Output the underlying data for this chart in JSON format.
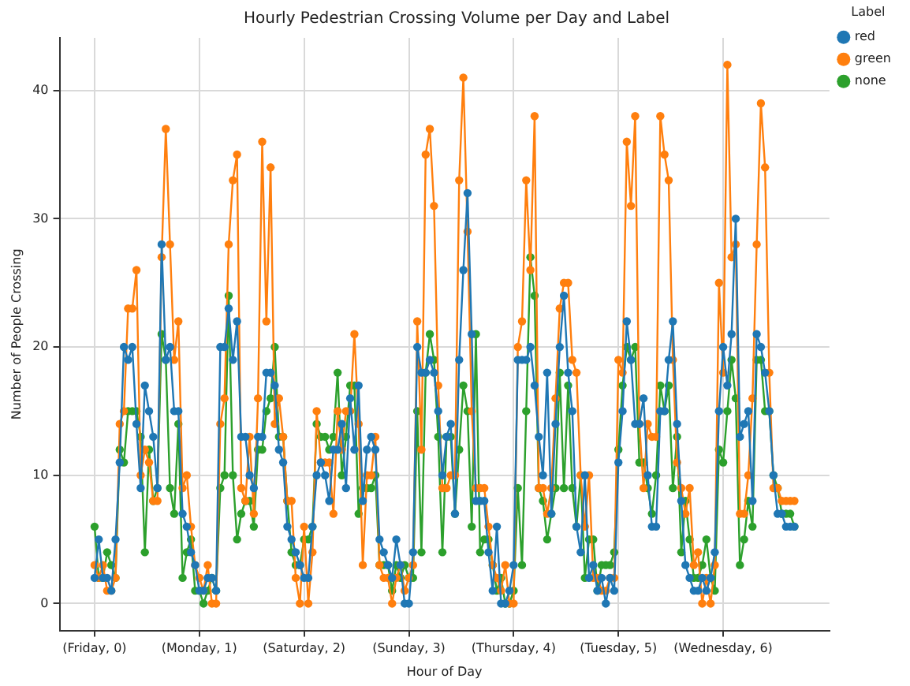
{
  "chart_data": {
    "type": "line",
    "title": "Hourly Pedestrian Crossing Volume per Day and Label",
    "xlabel": "Hour of Day",
    "ylabel": "Number of People Crossing",
    "legend_title": "Label",
    "legend": "top right",
    "grid": true,
    "marker": "circle",
    "line_style": "solid",
    "ylim": [
      -2.1,
      44.1
    ],
    "yticks": [
      0,
      10,
      20,
      30,
      40
    ],
    "categories": [
      "(Friday, 0)",
      null,
      null,
      null,
      null,
      null,
      null,
      null,
      null,
      null,
      null,
      null,
      null,
      null,
      null,
      null,
      null,
      null,
      null,
      null,
      null,
      null,
      null,
      null,
      null,
      "(Monday, 1)",
      null,
      null,
      null,
      null,
      null,
      null,
      null,
      null,
      null,
      null,
      null,
      null,
      null,
      null,
      null,
      null,
      null,
      null,
      null,
      null,
      null,
      null,
      null,
      null,
      "(Saturday, 2)",
      null,
      null,
      null,
      null,
      null,
      null,
      null,
      null,
      null,
      null,
      null,
      null,
      null,
      null,
      null,
      null,
      null,
      null,
      null,
      null,
      null,
      null,
      null,
      null,
      "(Sunday, 3)",
      null,
      null,
      null,
      null,
      null,
      null,
      null,
      null,
      null,
      null,
      null,
      null,
      null,
      null,
      null,
      null,
      null,
      null,
      null,
      null,
      null,
      null,
      null,
      null,
      "(Thursday, 4)",
      null,
      null,
      null,
      null,
      null,
      null,
      null,
      null,
      null,
      null,
      null,
      null,
      null,
      null,
      null,
      null,
      null,
      null,
      null,
      null,
      null,
      null,
      null,
      null,
      "(Tuesday, 5)",
      null,
      null,
      null,
      null,
      null,
      null,
      null,
      null,
      null,
      null,
      null,
      null,
      null,
      null,
      null,
      null,
      null,
      null,
      null,
      null,
      null,
      null,
      null,
      null,
      "(Wednesday, 6)",
      null,
      null,
      null,
      null,
      null,
      null,
      null,
      null,
      null,
      null,
      null,
      null,
      null,
      null,
      null,
      null,
      null
    ],
    "series": [
      {
        "name": "red",
        "color": "#1f77b4",
        "values": [
          2,
          5,
          2,
          2,
          1,
          5,
          11,
          20,
          19,
          20,
          14,
          9,
          17,
          15,
          13,
          9,
          28,
          19,
          20,
          15,
          15,
          7,
          6,
          4,
          3,
          1,
          1,
          2,
          2,
          1,
          20,
          20,
          23,
          19,
          22,
          13,
          13,
          10,
          9,
          13,
          13,
          18,
          18,
          17,
          12,
          11,
          6,
          5,
          4,
          3,
          2,
          2,
          6,
          10,
          11,
          10,
          8,
          12,
          12,
          14,
          9,
          16,
          12,
          17,
          8,
          12,
          13,
          12,
          5,
          4,
          3,
          2,
          5,
          3,
          0,
          0,
          4,
          20,
          18,
          18,
          19,
          18,
          15,
          10,
          13,
          14,
          7,
          19,
          26,
          32,
          21,
          8,
          8,
          8,
          4,
          1,
          6,
          0,
          0,
          1,
          3,
          19,
          19,
          19,
          20,
          17,
          13,
          10,
          18,
          7,
          14,
          20,
          24,
          18,
          15,
          6,
          4,
          10,
          2,
          3,
          1,
          2,
          0,
          2,
          1,
          11,
          15,
          22,
          19,
          14,
          14,
          16,
          10,
          6,
          6,
          15,
          15,
          19,
          22,
          14,
          8,
          3,
          2,
          1,
          1,
          2,
          1,
          2,
          4,
          15,
          20,
          17,
          21,
          30,
          13,
          14,
          15,
          8,
          21,
          20,
          18,
          15,
          10,
          7,
          7,
          6,
          6,
          6
        ]
      },
      {
        "name": "green",
        "color": "#ff7f0e",
        "values": [
          3,
          2,
          3,
          1,
          1,
          2,
          14,
          15,
          23,
          23,
          26,
          10,
          12,
          11,
          8,
          8,
          27,
          37,
          28,
          19,
          22,
          9,
          10,
          6,
          3,
          2,
          1,
          3,
          0,
          0,
          14,
          16,
          28,
          33,
          35,
          9,
          8,
          13,
          7,
          16,
          36,
          22,
          34,
          14,
          16,
          13,
          8,
          8,
          2,
          0,
          6,
          0,
          4,
          15,
          11,
          11,
          11,
          7,
          15,
          12,
          15,
          15,
          21,
          14,
          3,
          10,
          10,
          13,
          3,
          2,
          2,
          0,
          2,
          3,
          1,
          2,
          3,
          22,
          12,
          35,
          37,
          31,
          17,
          9,
          9,
          10,
          10,
          33,
          41,
          29,
          15,
          9,
          9,
          9,
          6,
          3,
          2,
          1,
          3,
          0,
          0,
          20,
          22,
          33,
          26,
          38,
          9,
          9,
          7,
          9,
          16,
          23,
          25,
          25,
          19,
          18,
          10,
          6,
          10,
          2,
          2,
          1,
          1,
          2,
          2,
          19,
          18,
          36,
          31,
          38,
          14,
          9,
          14,
          13,
          13,
          38,
          35,
          33,
          19,
          11,
          9,
          7,
          9,
          3,
          4,
          0,
          2,
          0,
          3,
          25,
          18,
          42,
          27,
          28,
          7,
          7,
          10,
          16,
          28,
          39,
          34,
          18,
          9,
          9,
          8,
          8,
          8,
          8
        ]
      },
      {
        "name": "none",
        "color": "#2ca02c",
        "values": [
          6,
          2,
          2,
          4,
          3,
          2,
          12,
          11,
          15,
          15,
          15,
          13,
          4,
          12,
          8,
          9,
          21,
          19,
          9,
          7,
          14,
          2,
          4,
          5,
          1,
          1,
          0,
          1,
          2,
          1,
          9,
          10,
          24,
          10,
          5,
          7,
          8,
          8,
          6,
          12,
          12,
          15,
          16,
          20,
          13,
          13,
          8,
          4,
          3,
          3,
          5,
          5,
          6,
          14,
          13,
          13,
          12,
          13,
          18,
          10,
          13,
          17,
          17,
          7,
          9,
          9,
          9,
          10,
          3,
          3,
          3,
          1,
          3,
          2,
          3,
          2,
          2,
          15,
          4,
          18,
          21,
          19,
          13,
          4,
          13,
          13,
          7,
          12,
          17,
          15,
          6,
          21,
          4,
          5,
          5,
          3,
          1,
          2,
          0,
          0,
          1,
          9,
          3,
          15,
          27,
          24,
          9,
          8,
          5,
          7,
          9,
          18,
          9,
          17,
          9,
          6,
          10,
          2,
          5,
          5,
          1,
          3,
          3,
          3,
          4,
          12,
          17,
          20,
          19,
          20,
          11,
          11,
          9,
          7,
          10,
          17,
          15,
          17,
          9,
          13,
          4,
          8,
          5,
          2,
          2,
          3,
          5,
          2,
          1,
          12,
          11,
          15,
          19,
          16,
          3,
          5,
          8,
          6,
          19,
          19,
          15,
          15,
          10,
          9,
          7,
          7,
          7,
          6
        ]
      }
    ]
  }
}
